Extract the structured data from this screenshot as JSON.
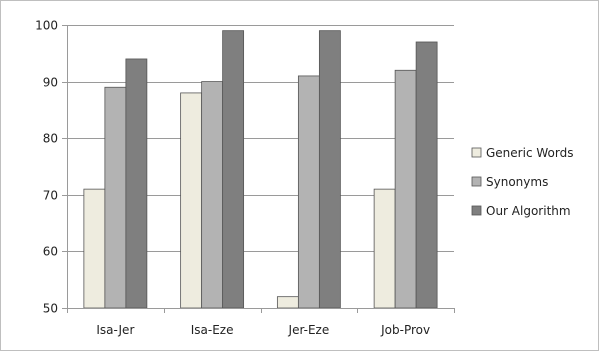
{
  "colors": {
    "frame": "#bfbfbf",
    "axis": "#9a9a9a",
    "grid": "#9a9a9a",
    "bar_edge": "#555555"
  },
  "chart_data": {
    "type": "bar",
    "categories": [
      "Isa-Jer",
      "Isa-Eze",
      "Jer-Eze",
      "Job-Prov"
    ],
    "series": [
      {
        "name": "Generic Words",
        "values": [
          71,
          88,
          52,
          71
        ],
        "color": "#eeecdf"
      },
      {
        "name": "Synonyms",
        "values": [
          89,
          90,
          91,
          92
        ],
        "color": "#b3b3b3"
      },
      {
        "name": "Our Algorithm",
        "values": [
          94,
          99,
          99,
          97
        ],
        "color": "#7f7f7f"
      }
    ],
    "ylim": [
      50,
      100
    ],
    "yticks": [
      50,
      60,
      70,
      80,
      90,
      100
    ],
    "grid": true,
    "legend": "right"
  }
}
